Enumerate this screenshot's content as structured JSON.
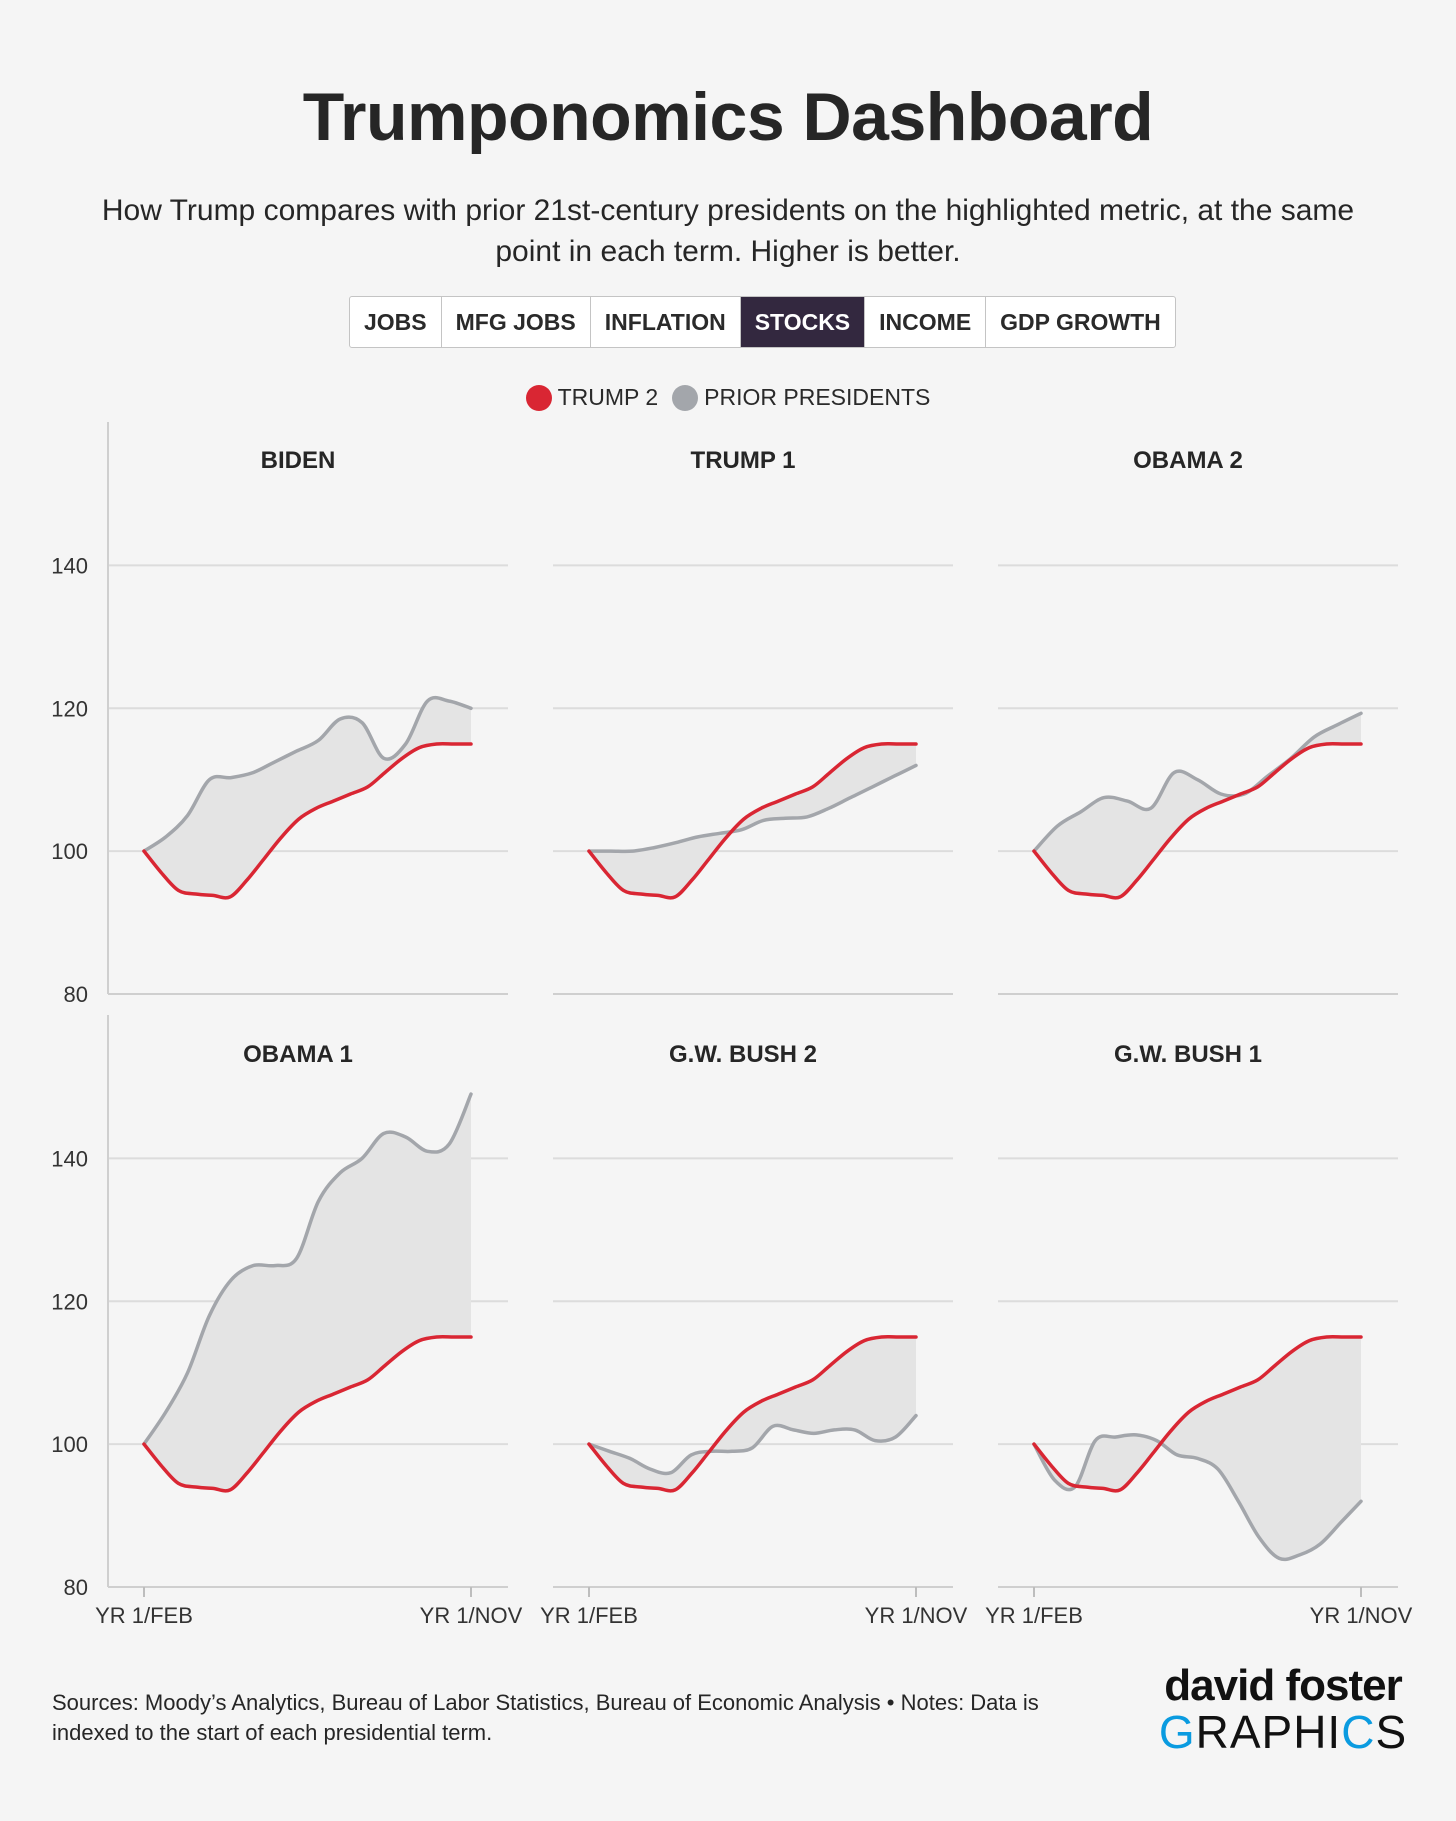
{
  "header": {
    "title": "Trumponomics Dashboard",
    "subtitle_line1": "How Trump compares with prior 21st-century presidents on the highlighted metric, at the same",
    "subtitle_line2": "point in each term. Higher is better."
  },
  "tabs": [
    {
      "label": "JOBS",
      "active": false
    },
    {
      "label": "MFG JOBS",
      "active": false
    },
    {
      "label": "INFLATION",
      "active": false
    },
    {
      "label": "STOCKS",
      "active": true
    },
    {
      "label": "INCOME",
      "active": false
    },
    {
      "label": "GDP GROWTH",
      "active": false
    }
  ],
  "legend": {
    "trump": {
      "label": "TRUMP 2",
      "color": "#d92633"
    },
    "prior": {
      "label": "PRIOR PRESIDENTS",
      "color": "#a3a6ab"
    }
  },
  "footer": {
    "sources_line1": "Sources: Moody’s Analytics, Bureau of Labor Statistics, Bureau of Economic Analysis • Notes: Data is",
    "sources_line2": "indexed to the start of each presidential term.",
    "logo_line1": "david foster",
    "logo_line2_a": "G",
    "logo_line2_b": "RAPHI",
    "logo_line2_c": "C",
    "logo_line2_d": "S"
  },
  "colors": {
    "trump": "#d92633",
    "prior": "#a3a6ab",
    "fill": "#e4e4e4",
    "grid": "#dcdcdc",
    "active_tab": "#33283f"
  },
  "chart_data": {
    "type": "line",
    "ylim": [
      80,
      150
    ],
    "yticks": [
      80,
      100,
      120,
      140
    ],
    "xlabels": [
      "YR 1/FEB",
      "YR 1/NOV"
    ],
    "trump_series": {
      "name": "TRUMP 2",
      "values": [
        100,
        97,
        94.5,
        94,
        93.8,
        93.6,
        96,
        99,
        102,
        104.5,
        106,
        107,
        108,
        109,
        111,
        113,
        114.5,
        115,
        115,
        115
      ]
    },
    "panels": [
      {
        "name": "BIDEN",
        "values": [
          100,
          102,
          105,
          110,
          110.3,
          111,
          112.5,
          114,
          115.5,
          118.5,
          118,
          113,
          115,
          121,
          121,
          120
        ]
      },
      {
        "name": "TRUMP 1",
        "values": [
          100,
          100,
          100,
          100.5,
          101.2,
          102,
          102.5,
          103,
          104.3,
          104.6,
          104.8,
          106,
          107.5,
          109,
          110.5,
          112
        ]
      },
      {
        "name": "OBAMA 2",
        "values": [
          100,
          103.5,
          105.5,
          107.5,
          107,
          106,
          111,
          110,
          108,
          108,
          110.5,
          113,
          116,
          117.7,
          119.3
        ]
      },
      {
        "name": "OBAMA 1",
        "values": [
          100,
          104.5,
          110,
          118,
          123,
          125,
          125,
          126,
          134,
          138,
          140,
          143.5,
          143,
          141,
          142,
          149
        ]
      },
      {
        "name": "G.W. BUSH 2",
        "values": [
          100,
          99,
          98,
          96.5,
          96,
          98.5,
          99,
          99,
          99.5,
          102.5,
          102,
          101.5,
          102,
          102,
          100.5,
          101,
          104
        ]
      },
      {
        "name": "G.W. BUSH 1",
        "values": [
          100,
          95,
          94,
          100.5,
          101,
          101.3,
          100.5,
          98.5,
          98,
          96.5,
          92,
          87,
          84,
          84.5,
          86,
          89,
          92
        ]
      }
    ]
  }
}
